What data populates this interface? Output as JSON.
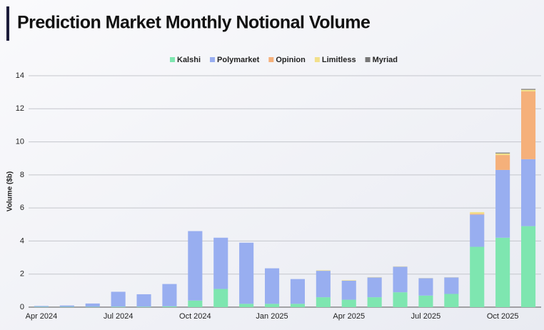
{
  "chart_data": {
    "type": "stacked-bar",
    "title": "Prediction Market Monthly Notional Volume",
    "y_label": "Volume ($b)",
    "categories": [
      "Apr 2024",
      null,
      null,
      "Jul 2024",
      null,
      null,
      "Oct 2024",
      null,
      null,
      "Jan 2025",
      null,
      null,
      "Apr 2025",
      null,
      null,
      "Jul 2025",
      null,
      null,
      "Oct 2025",
      null
    ],
    "series": [
      {
        "name": "Kalshi",
        "color": "#7ee6b0",
        "values": [
          0.02,
          0.02,
          0.02,
          0.03,
          0.03,
          0.05,
          0.4,
          1.1,
          0.2,
          0.2,
          0.2,
          0.6,
          0.45,
          0.6,
          0.9,
          0.7,
          0.8,
          3.65,
          4.2,
          4.9
        ]
      },
      {
        "name": "Polymarket",
        "color": "#98aef0",
        "values": [
          0.05,
          0.08,
          0.2,
          0.9,
          0.75,
          1.35,
          4.2,
          3.1,
          3.7,
          2.15,
          1.5,
          1.6,
          1.15,
          1.2,
          1.55,
          1.05,
          1.0,
          1.95,
          4.1,
          4.05
        ]
      },
      {
        "name": "Opinion",
        "color": "#f5b07a",
        "values": [
          0,
          0,
          0,
          0,
          0,
          0,
          0,
          0,
          0,
          0,
          0,
          0,
          0,
          0,
          0,
          0,
          0,
          0.05,
          0.9,
          4.1
        ]
      },
      {
        "name": "Limitless",
        "color": "#f2e08a",
        "values": [
          0,
          0,
          0,
          0,
          0,
          0,
          0,
          0,
          0,
          0,
          0,
          0.03,
          0.03,
          0.02,
          0.02,
          0.01,
          0.01,
          0.1,
          0.1,
          0.1
        ]
      },
      {
        "name": "Myriad",
        "color": "#777777",
        "values": [
          0,
          0,
          0,
          0,
          0,
          0,
          0,
          0,
          0,
          0,
          0,
          0,
          0,
          0,
          0,
          0,
          0,
          0,
          0.05,
          0.05
        ]
      }
    ],
    "ylim": [
      0,
      14
    ],
    "yticks": [
      0,
      2,
      4,
      6,
      8,
      10,
      12,
      14
    ],
    "grid": true
  }
}
